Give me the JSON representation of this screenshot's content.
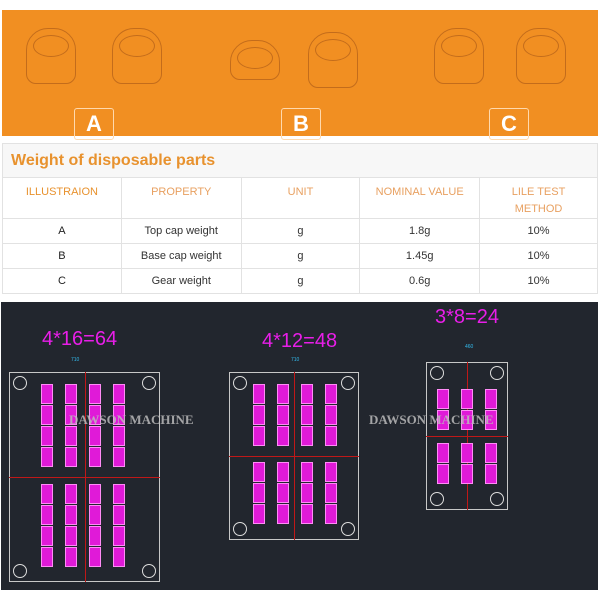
{
  "banner": {
    "labels": [
      "A",
      "B",
      "C"
    ]
  },
  "table": {
    "title": "Weight of disposable parts",
    "headers": [
      "ILLUSTRAION",
      "PROPERTY",
      "UNIT",
      "NOMINAL VALUE",
      "LILE TEST METHOD"
    ],
    "rows": [
      [
        "A",
        "Top cap weight",
        "g",
        "1.8g",
        "10%"
      ],
      [
        "B",
        "Base cap weight",
        "g",
        "1.45g",
        "10%"
      ],
      [
        "C",
        "Gear weight",
        "g",
        "0.6g",
        "10%"
      ]
    ]
  },
  "molds": [
    {
      "title": "4*16=64",
      "dimension": "710"
    },
    {
      "title": "4*12=48",
      "dimension": "710"
    },
    {
      "title": "3*8=24",
      "dimension": "460"
    }
  ],
  "watermark": "DAWSON MACHINE",
  "colors": {
    "banner": "#f18f22",
    "accent": "#e8922e",
    "cavity": "#e01ad8",
    "cad_bg": "#22262e"
  }
}
